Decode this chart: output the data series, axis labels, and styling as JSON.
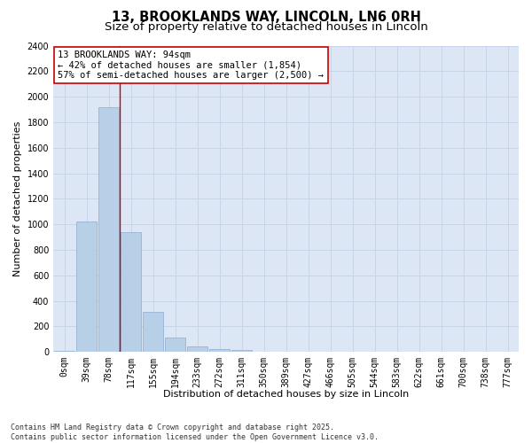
{
  "title_line1": "13, BROOKLANDS WAY, LINCOLN, LN6 0RH",
  "title_line2": "Size of property relative to detached houses in Lincoln",
  "xlabel": "Distribution of detached houses by size in Lincoln",
  "ylabel": "Number of detached properties",
  "bar_labels": [
    "0sqm",
    "39sqm",
    "78sqm",
    "117sqm",
    "155sqm",
    "194sqm",
    "233sqm",
    "272sqm",
    "311sqm",
    "350sqm",
    "389sqm",
    "427sqm",
    "466sqm",
    "505sqm",
    "544sqm",
    "583sqm",
    "622sqm",
    "661sqm",
    "700sqm",
    "738sqm",
    "777sqm"
  ],
  "bar_values": [
    10,
    1025,
    1920,
    935,
    315,
    110,
    42,
    25,
    12,
    0,
    0,
    0,
    0,
    0,
    0,
    0,
    0,
    0,
    0,
    0,
    0
  ],
  "bar_color": "#b8cfe8",
  "bar_edge_color": "#8aaed0",
  "grid_color": "#c8d4e8",
  "background_color": "#dce6f5",
  "fig_background": "#ffffff",
  "vline_x": 2.5,
  "vline_color": "#cc0000",
  "annotation_text": "13 BROOKLANDS WAY: 94sqm\n← 42% of detached houses are smaller (1,854)\n57% of semi-detached houses are larger (2,500) →",
  "annotation_box_color": "#ffffff",
  "annotation_box_edge": "#cc0000",
  "ylim": [
    0,
    2400
  ],
  "yticks": [
    0,
    200,
    400,
    600,
    800,
    1000,
    1200,
    1400,
    1600,
    1800,
    2000,
    2200,
    2400
  ],
  "footnote": "Contains HM Land Registry data © Crown copyright and database right 2025.\nContains public sector information licensed under the Open Government Licence v3.0.",
  "title_fontsize": 10.5,
  "subtitle_fontsize": 9.5,
  "axis_label_fontsize": 8,
  "tick_fontsize": 7,
  "annotation_fontsize": 7.5,
  "footnote_fontsize": 6
}
